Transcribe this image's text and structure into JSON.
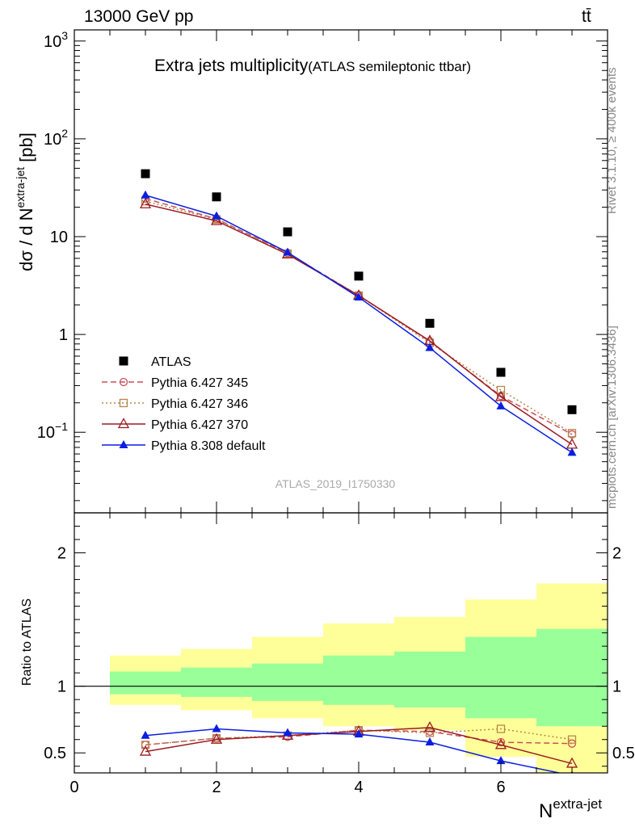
{
  "header": {
    "left": "13000 GeV pp",
    "right": "tt̄"
  },
  "side": {
    "rivet": "Rivet 3.1.10, ≥ 400k events",
    "mcplots": "mcplots.cern.ch [arXiv:1306.3436]"
  },
  "chart_data": [
    {
      "type": "line",
      "yscale": "log",
      "title": "Extra jets multiplicity",
      "subtitle": "(ATLAS semileptonic ttbar)",
      "watermark": "ATLAS_2019_I1750330",
      "ylabel": "dσ / d N",
      "ylabel_sup": "extra-jet",
      "ylabel_unit": "[pb]",
      "xlim": [
        0,
        7.5
      ],
      "ylim": [
        0.015,
        1300
      ],
      "yticks": [
        {
          "value": 0.1,
          "label": "10",
          "sup": "−1"
        },
        {
          "value": 1,
          "label": "1",
          "sup": ""
        },
        {
          "value": 10,
          "label": "10",
          "sup": ""
        },
        {
          "value": 100,
          "label": "10",
          "sup": "2"
        },
        {
          "value": 1000,
          "label": "10",
          "sup": "3"
        }
      ],
      "x": [
        1,
        2,
        3,
        4,
        5,
        6,
        7
      ],
      "series": [
        {
          "name": "ATLAS",
          "color": "#000000",
          "marker": "square-filled",
          "line": "none",
          "values": [
            44,
            25.5,
            11.2,
            3.95,
            1.3,
            0.41,
            0.17
          ]
        },
        {
          "name": "Pythia 6.427 345",
          "color": "#c8505a",
          "marker": "circle-open",
          "line": "dashed",
          "values": [
            24.5,
            15.2,
            6.8,
            2.5,
            0.85,
            0.235,
            0.095
          ]
        },
        {
          "name": "Pythia 6.427 346",
          "color": "#b8864a",
          "marker": "square-open",
          "line": "dotted",
          "values": [
            23,
            15.0,
            6.7,
            2.5,
            0.82,
            0.27,
            0.098
          ]
        },
        {
          "name": "Pythia 6.427 370",
          "color": "#9b1b22",
          "marker": "triangle-open",
          "line": "solid",
          "values": [
            21.5,
            14.5,
            6.6,
            2.5,
            0.86,
            0.23,
            0.075
          ]
        },
        {
          "name": "Pythia 8.308 default",
          "color": "#0a1ee0",
          "marker": "triangle-filled",
          "line": "solid",
          "values": [
            26.5,
            16.2,
            6.9,
            2.4,
            0.73,
            0.185,
            0.062
          ]
        }
      ]
    },
    {
      "type": "line",
      "ylabel": "Ratio to ATLAS",
      "xlabel": "N",
      "xlabel_sup": "extra-jet",
      "xlim": [
        0,
        7.5
      ],
      "ylim": [
        0.35,
        2.3
      ],
      "xticks": [
        0,
        2,
        4,
        6
      ],
      "yticks": [
        0.5,
        1,
        2
      ],
      "reference": 1,
      "bands": {
        "bins": [
          [
            0.5,
            1.5
          ],
          [
            1.5,
            2.5
          ],
          [
            2.5,
            3.5
          ],
          [
            3.5,
            4.5
          ],
          [
            4.5,
            5.5
          ],
          [
            5.5,
            6.5
          ],
          [
            6.5,
            7.5
          ]
        ],
        "inner": [
          [
            0.94,
            1.11
          ],
          [
            0.92,
            1.14
          ],
          [
            0.89,
            1.17
          ],
          [
            0.86,
            1.23
          ],
          [
            0.84,
            1.26
          ],
          [
            0.76,
            1.37
          ],
          [
            0.7,
            1.43
          ]
        ],
        "outer": [
          [
            0.86,
            1.23
          ],
          [
            0.82,
            1.28
          ],
          [
            0.76,
            1.37
          ],
          [
            0.7,
            1.47
          ],
          [
            0.67,
            1.52
          ],
          [
            0.47,
            1.65
          ],
          [
            0.35,
            1.77
          ]
        ],
        "inner_color": "#99ff99",
        "outer_color": "#ffff99"
      },
      "x": [
        1,
        2,
        3,
        4,
        5,
        6,
        7
      ],
      "series": [
        {
          "name": "Pythia 6.427 345",
          "values": [
            0.56,
            0.61,
            0.62,
            0.67,
            0.66,
            0.58,
            0.57
          ]
        },
        {
          "name": "Pythia 6.427 346",
          "values": [
            0.56,
            0.61,
            0.63,
            0.67,
            0.65,
            0.68,
            0.6
          ]
        },
        {
          "name": "Pythia 6.427 370",
          "values": [
            0.51,
            0.6,
            0.63,
            0.66,
            0.69,
            0.56,
            0.42
          ]
        },
        {
          "name": "Pythia 8.308 default",
          "values": [
            0.63,
            0.68,
            0.65,
            0.64,
            0.58,
            0.44,
            0.33
          ]
        }
      ]
    }
  ]
}
